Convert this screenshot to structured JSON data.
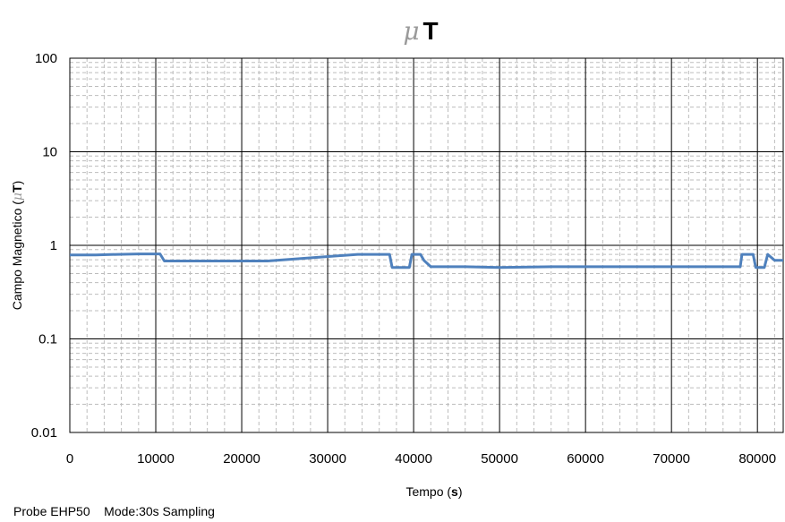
{
  "chart_data": {
    "type": "line",
    "title": {
      "symbol": "μ",
      "unit": "T"
    },
    "xlabel": {
      "text": "Tempo (",
      "unit": "s",
      "close": ")"
    },
    "ylabel": {
      "text": "Campo Magnetico (",
      "symbol": "μ",
      "unit": "T",
      "close": ")"
    },
    "xlim": [
      0,
      83000
    ],
    "ylim": [
      0.01,
      100
    ],
    "yscale": "log",
    "x_ticks": [
      0,
      10000,
      20000,
      30000,
      40000,
      50000,
      60000,
      70000,
      80000
    ],
    "y_ticks": [
      "0.01",
      "0.1",
      "1",
      "10",
      "100"
    ],
    "grid": true,
    "series_color": "#4f81bd",
    "series": [
      {
        "x": [
          0,
          3000,
          5500,
          8000,
          10500,
          11000,
          20000,
          23000,
          33500,
          37200,
          37500,
          39500,
          39800,
          40800,
          41200,
          42000,
          46000,
          50000,
          56000,
          60000,
          62000,
          70000,
          73000,
          78000,
          78200,
          79500,
          79800,
          80800,
          81200,
          82000,
          83000
        ],
        "y": [
          0.79,
          0.79,
          0.8,
          0.81,
          0.81,
          0.68,
          0.68,
          0.68,
          0.8,
          0.8,
          0.58,
          0.58,
          0.8,
          0.8,
          0.69,
          0.59,
          0.59,
          0.58,
          0.59,
          0.59,
          0.59,
          0.59,
          0.59,
          0.59,
          0.8,
          0.8,
          0.58,
          0.58,
          0.8,
          0.69,
          0.69
        ]
      }
    ]
  },
  "footer": {
    "probe": "Probe EHP50",
    "mode": "Mode:30s Sampling"
  }
}
